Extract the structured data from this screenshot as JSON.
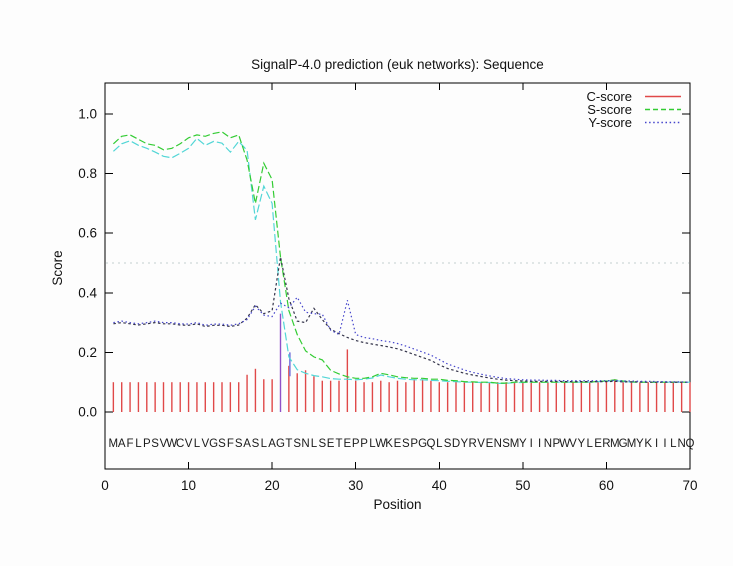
{
  "title": "SignalP-4.0 prediction (euk networks): Sequence",
  "axes": {
    "xlabel": "Position",
    "ylabel": "Score",
    "x_ticks": [
      0,
      10,
      20,
      30,
      40,
      50,
      60,
      70
    ],
    "y_ticks": [
      "0.0",
      "0.2",
      "0.4",
      "0.6",
      "0.8",
      "1.0"
    ],
    "xlim": [
      0,
      70
    ]
  },
  "legend": [
    {
      "label": "C-score",
      "color": "#e04848",
      "dash": "solid"
    },
    {
      "label": "S-score",
      "color": "#33cc33",
      "dash": "dashed"
    },
    {
      "label": "Y-score",
      "color": "#4444cc",
      "dash": "dotted"
    }
  ],
  "sequence": "MAFLPSVWCVLVGSFSASLAGTSNLSETEPPLWKESPGQLSDYRVENSMYIINPWVYLERMGMYKIILNQ",
  "chart_data": {
    "type": "line",
    "title": "SignalP-4.0 prediction (euk networks): Sequence",
    "xlabel": "Position",
    "ylabel": "Score",
    "xlim": [
      0,
      70
    ],
    "ylim": [
      0,
      1.0
    ],
    "grid": false,
    "legend_position": "top-right-inside",
    "positions": {
      "from": 1,
      "to": 70
    },
    "threshold_line": {
      "value": 0.5,
      "style": "dotted",
      "color": "#c3cece"
    },
    "series": [
      {
        "name": "C-score",
        "render": "impulse",
        "color": "#e04848",
        "special_colors": {
          "21": "#9050c8"
        },
        "values": [
          0.1,
          0.1,
          0.1,
          0.1,
          0.1,
          0.1,
          0.1,
          0.1,
          0.1,
          0.1,
          0.1,
          0.1,
          0.1,
          0.1,
          0.1,
          0.1,
          0.125,
          0.145,
          0.11,
          0.11,
          0.33,
          0.155,
          0.13,
          0.14,
          0.12,
          0.105,
          0.105,
          0.105,
          0.21,
          0.105,
          0.1,
          0.1,
          0.105,
          0.1,
          0.105,
          0.1,
          0.11,
          0.11,
          0.105,
          0.1,
          0.1,
          0.105,
          0.1,
          0.1,
          0.1,
          0.1,
          0.1,
          0.1,
          0.1,
          0.1,
          0.1,
          0.1,
          0.1,
          0.1,
          0.1,
          0.1,
          0.1,
          0.1,
          0.1,
          0.105,
          0.11,
          0.1,
          0.1,
          0.1,
          0.1,
          0.1,
          0.1,
          0.1,
          0.1,
          0.1
        ]
      },
      {
        "name": "S-score",
        "render": "line",
        "dash": "7 3",
        "color": "#33cc33",
        "values": [
          0.9,
          0.925,
          0.93,
          0.915,
          0.9,
          0.895,
          0.88,
          0.885,
          0.9,
          0.92,
          0.93,
          0.925,
          0.935,
          0.94,
          0.92,
          0.93,
          0.845,
          0.7,
          0.835,
          0.78,
          0.52,
          0.34,
          0.26,
          0.205,
          0.185,
          0.175,
          0.14,
          0.128,
          0.118,
          0.113,
          0.113,
          0.118,
          0.13,
          0.125,
          0.118,
          0.115,
          0.113,
          0.113,
          0.11,
          0.11,
          0.106,
          0.105,
          0.102,
          0.101,
          0.1,
          0.1,
          0.097,
          0.097,
          0.1,
          0.1,
          0.1,
          0.1,
          0.1,
          0.1,
          0.1,
          0.1,
          0.1,
          0.1,
          0.103,
          0.104,
          0.108,
          0.104,
          0.101,
          0.1,
          0.1,
          0.1,
          0.1,
          0.1,
          0.1,
          0.1
        ]
      },
      {
        "name": "unlabeled-cyan-line",
        "render": "line",
        "dash": "8 3",
        "color": "#52d6d6",
        "values": [
          0.875,
          0.9,
          0.91,
          0.895,
          0.885,
          0.872,
          0.858,
          0.853,
          0.868,
          0.885,
          0.918,
          0.895,
          0.908,
          0.902,
          0.872,
          0.908,
          0.878,
          0.645,
          0.758,
          0.7,
          0.37,
          0.185,
          0.142,
          0.13,
          0.122,
          0.118,
          0.112,
          0.11,
          0.11,
          0.108,
          0.11,
          0.114,
          0.124,
          0.118,
          0.113,
          0.11,
          0.108,
          0.108,
          0.106,
          0.105,
          0.103,
          0.102,
          0.1,
          0.1,
          0.099,
          0.099,
          0.096,
          0.096,
          0.099,
          0.099,
          0.1,
          0.1,
          0.1,
          0.1,
          0.1,
          0.1,
          0.1,
          0.1,
          0.102,
          0.103,
          0.106,
          0.102,
          0.1,
          0.1,
          0.1,
          0.1,
          0.1,
          0.1,
          0.1,
          0.1
        ]
      },
      {
        "name": "unlabeled-dark-dotted-line",
        "render": "line",
        "dash": "2.5 2.5",
        "color": "#34344a",
        "values": [
          0.296,
          0.3,
          0.296,
          0.292,
          0.296,
          0.3,
          0.296,
          0.296,
          0.292,
          0.291,
          0.296,
          0.287,
          0.291,
          0.291,
          0.287,
          0.292,
          0.315,
          0.36,
          0.33,
          0.34,
          0.52,
          0.38,
          0.305,
          0.3,
          0.348,
          0.31,
          0.278,
          0.263,
          0.25,
          0.24,
          0.233,
          0.228,
          0.223,
          0.218,
          0.212,
          0.203,
          0.193,
          0.183,
          0.173,
          0.158,
          0.146,
          0.138,
          0.13,
          0.124,
          0.119,
          0.114,
          0.11,
          0.107,
          0.105,
          0.104,
          0.103,
          0.103,
          0.103,
          0.103,
          0.102,
          0.102,
          0.102,
          0.102,
          0.102,
          0.102,
          0.103,
          0.101,
          0.101,
          0.101,
          0.1,
          0.1,
          0.1,
          0.1,
          0.1,
          0.1
        ]
      },
      {
        "name": "Y-score",
        "render": "line",
        "dash": "1.5 2.6",
        "color": "#4444cc",
        "values": [
          0.3,
          0.305,
          0.3,
          0.296,
          0.3,
          0.305,
          0.3,
          0.3,
          0.296,
          0.295,
          0.3,
          0.291,
          0.295,
          0.295,
          0.291,
          0.296,
          0.31,
          0.355,
          0.325,
          0.32,
          0.365,
          0.35,
          0.385,
          0.335,
          0.33,
          0.328,
          0.275,
          0.26,
          0.375,
          0.26,
          0.25,
          0.246,
          0.24,
          0.236,
          0.23,
          0.221,
          0.211,
          0.201,
          0.191,
          0.176,
          0.161,
          0.151,
          0.141,
          0.133,
          0.127,
          0.121,
          0.116,
          0.112,
          0.11,
          0.108,
          0.107,
          0.107,
          0.106,
          0.106,
          0.105,
          0.105,
          0.105,
          0.105,
          0.105,
          0.105,
          0.106,
          0.104,
          0.104,
          0.103,
          0.103,
          0.102,
          0.102,
          0.101,
          0.101,
          0.1
        ]
      }
    ],
    "extra_marks": [
      {
        "type": "bar",
        "position": 22,
        "from": 0.12,
        "to": 0.2,
        "color": "#7a7ade"
      }
    ],
    "sequence_track": "MAFLPSVWCVLVGSFSASLAGTSNLSETEPPLWKESPGQLSDYRVENSMYIINPWVYLERMGMYKIILNQ"
  }
}
